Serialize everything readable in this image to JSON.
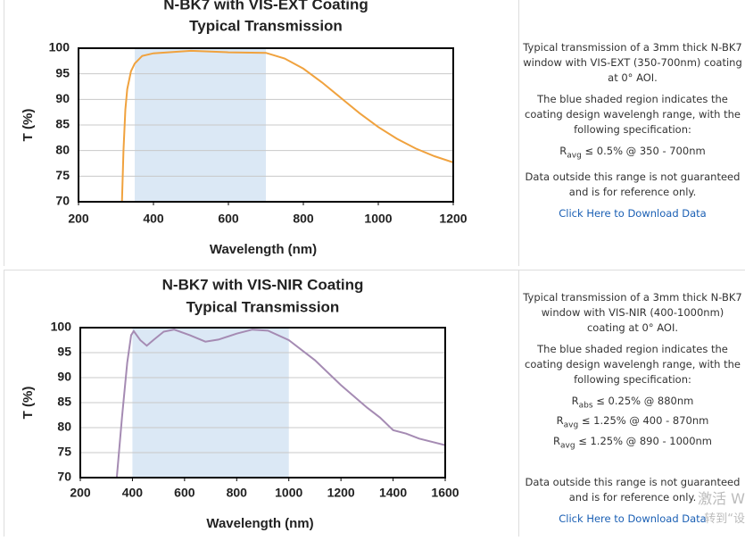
{
  "chart_data": [
    {
      "type": "line",
      "title": "N-BK7 with VIS-EXT Coating",
      "subtitle": "Typical Transmission",
      "x_label": "Wavelength (nm)",
      "y_label": "T (%)",
      "x": [
        316,
        320,
        325,
        330,
        340,
        350,
        370,
        400,
        500,
        600,
        700,
        750,
        800,
        850,
        900,
        950,
        1000,
        1050,
        1100,
        1150,
        1200
      ],
      "series": [
        {
          "color": "#f0a23e",
          "values": [
            70,
            80,
            88,
            92,
            95.5,
            97,
            98.5,
            99,
            99.5,
            99.2,
            99.1,
            98,
            96,
            93.3,
            90.3,
            87.3,
            84.6,
            82.3,
            80.4,
            78.9,
            77.7
          ]
        }
      ],
      "shaded_x": [
        350,
        700
      ],
      "shade_color": "#dbe8f5",
      "xlim": [
        200,
        1200
      ],
      "xticks": [
        200,
        400,
        600,
        800,
        1000,
        1200
      ],
      "ylim": [
        70,
        100
      ],
      "yticks": [
        70,
        75,
        80,
        85,
        90,
        95,
        100
      ],
      "grid": true
    },
    {
      "type": "line",
      "title": "N-BK7 with VIS-NIR Coating",
      "subtitle": "Typical Transmission",
      "x_label": "Wavelength (nm)",
      "y_label": "T (%)",
      "x": [
        340,
        360,
        380,
        395,
        405,
        430,
        455,
        480,
        520,
        560,
        620,
        680,
        730,
        800,
        860,
        920,
        1000,
        1100,
        1200,
        1300,
        1350,
        1400,
        1450,
        1500,
        1600
      ],
      "series": [
        {
          "color": "#a58bb3",
          "values": [
            70,
            82,
            93,
            98.5,
            99.3,
            97.5,
            96.4,
            97.5,
            99.2,
            99.6,
            98.5,
            97.2,
            97.6,
            98.8,
            99.6,
            99.4,
            97.5,
            93.5,
            88.5,
            84,
            82,
            79.5,
            78.8,
            77.8,
            76.5
          ]
        }
      ],
      "shaded_x": [
        400,
        1000
      ],
      "shade_color": "#dbe8f5",
      "xlim": [
        200,
        1600
      ],
      "xticks": [
        200,
        400,
        600,
        800,
        1000,
        1200,
        1400,
        1600
      ],
      "ylim": [
        70,
        100
      ],
      "yticks": [
        70,
        75,
        80,
        85,
        90,
        95,
        100
      ],
      "grid": true
    }
  ],
  "panels": [
    {
      "intro": "Typical transmission of a 3mm thick N-BK7 window with VIS-EXT (350-700nm) coating at 0° AOI.",
      "shade_note": "The blue shaded region indicates the coating design wavelengh range, with the following specification:",
      "specs": [
        {
          "symbol": "R",
          "sub": "avg",
          "text": "≤ 0.5% @ 350 - 700nm"
        }
      ],
      "note": "Data outside this range is not guaranteed and is for reference only.",
      "link": "Click Here to Download Data"
    },
    {
      "intro": "Typical transmission of a 3mm thick N-BK7 window with VIS-NIR (400-1000nm) coating at 0° AOI.",
      "shade_note": "The blue shaded region indicates the coating design wavelengh range, with the following specification:",
      "specs": [
        {
          "symbol": "R",
          "sub": "abs",
          "text": "≤ 0.25% @ 880nm"
        },
        {
          "symbol": "R",
          "sub": "avg",
          "text": "≤ 1.25% @ 400 - 870nm"
        },
        {
          "symbol": "R",
          "sub": "avg",
          "text": "≤ 1.25% @ 890 - 1000nm"
        }
      ],
      "note": "Data outside this range is not guaranteed and is for reference only.",
      "link": "Click Here to Download Data"
    }
  ],
  "watermark": [
    "激活 W",
    "转到“设"
  ]
}
